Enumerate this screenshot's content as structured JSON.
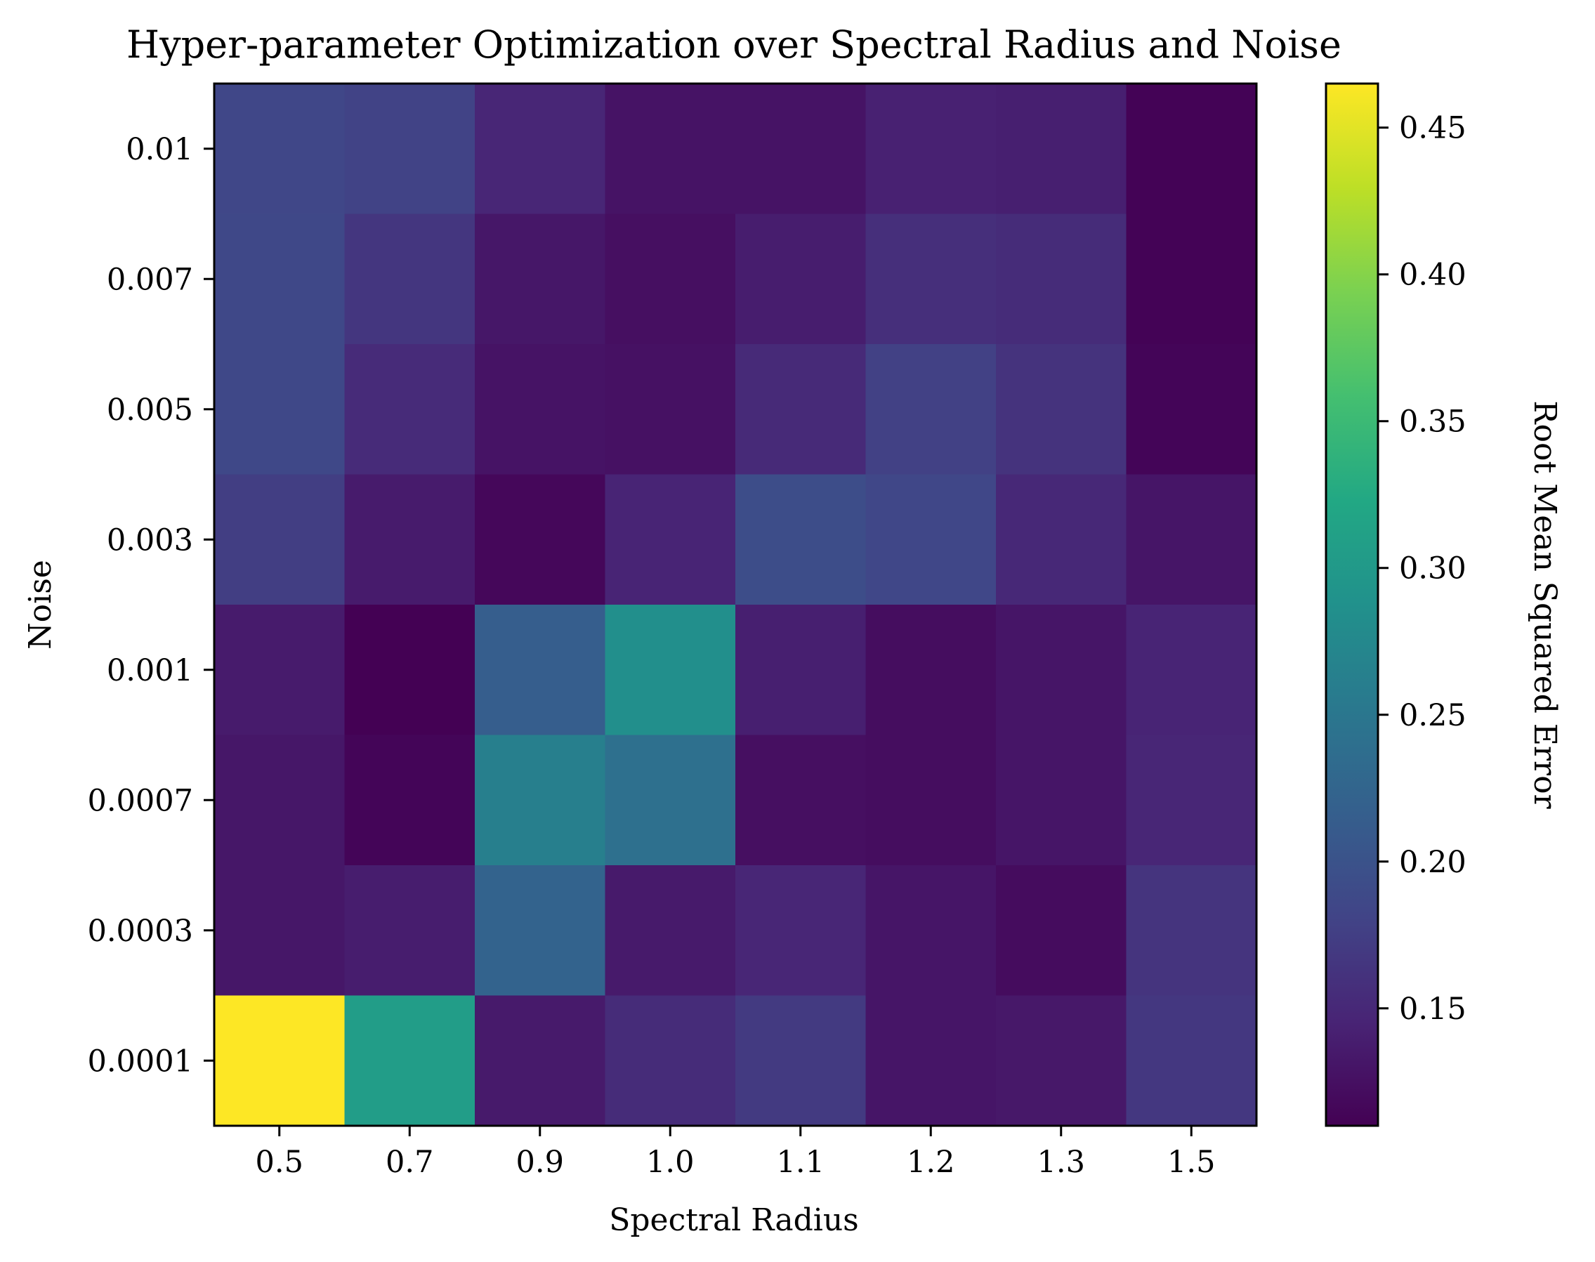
{
  "chart_data": {
    "type": "heatmap",
    "title": "Hyper-parameter Optimization over Spectral Radius and Noise",
    "xlabel": "Spectral Radius",
    "ylabel": "Noise",
    "colorbar_label": "Root Mean Squared Error",
    "colormap": "viridis",
    "x_categories": [
      "0.5",
      "0.7",
      "0.9",
      "1.0",
      "1.1",
      "1.2",
      "1.3",
      "1.5"
    ],
    "y_categories": [
      "0.01",
      "0.007",
      "0.005",
      "0.003",
      "0.001",
      "0.0007",
      "0.0003",
      "0.0001"
    ],
    "values": [
      [
        0.185,
        0.18,
        0.148,
        0.128,
        0.128,
        0.142,
        0.14,
        0.112
      ],
      [
        0.186,
        0.166,
        0.132,
        0.124,
        0.138,
        0.158,
        0.154,
        0.112
      ],
      [
        0.186,
        0.153,
        0.128,
        0.126,
        0.152,
        0.178,
        0.162,
        0.114
      ],
      [
        0.174,
        0.136,
        0.116,
        0.145,
        0.193,
        0.185,
        0.15,
        0.13
      ],
      [
        0.136,
        0.11,
        0.215,
        0.285,
        0.14,
        0.122,
        0.13,
        0.145
      ],
      [
        0.132,
        0.114,
        0.262,
        0.24,
        0.124,
        0.122,
        0.13,
        0.148
      ],
      [
        0.132,
        0.138,
        0.222,
        0.135,
        0.148,
        0.13,
        0.121,
        0.163
      ],
      [
        0.465,
        0.306,
        0.135,
        0.154,
        0.17,
        0.13,
        0.133,
        0.167
      ]
    ],
    "vmin": 0.11,
    "vmax": 0.465,
    "colorbar_ticks": [
      "0.15",
      "0.20",
      "0.25",
      "0.30",
      "0.35",
      "0.40",
      "0.45"
    ],
    "grid": false,
    "legend": "colorbar-right"
  }
}
